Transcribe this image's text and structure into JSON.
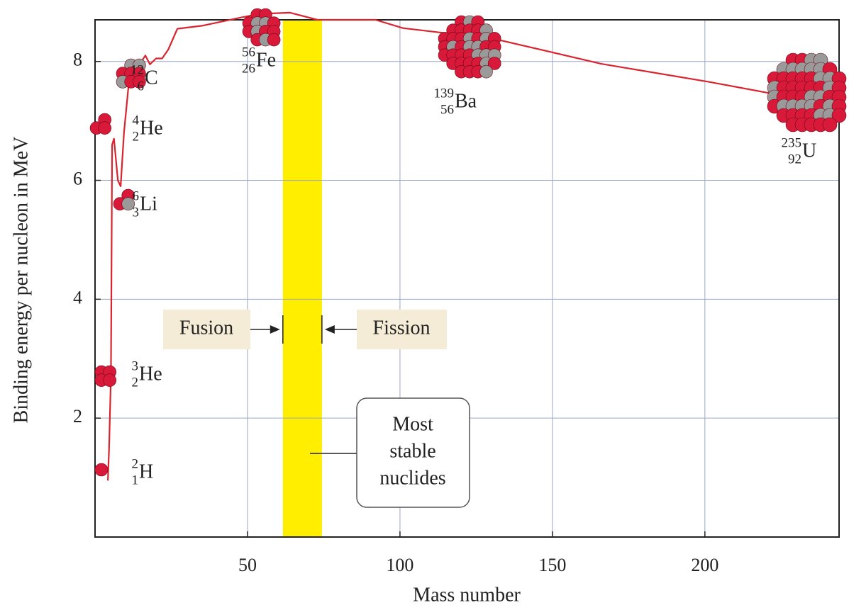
{
  "chart_data": {
    "type": "line",
    "xlabel": "Mass number",
    "ylabel": "Binding energy per nucleon in MeV",
    "xlim": [
      0,
      244
    ],
    "ylim": [
      0,
      8.7
    ],
    "xticks": [
      50,
      100,
      150,
      200
    ],
    "yticks": [
      2,
      4,
      6,
      8
    ],
    "grid": true,
    "series": [
      {
        "color": "#d9232e",
        "x": [
          4.2,
          4.6,
          5.2,
          5.6,
          6.2,
          7.5,
          8.4,
          9.5,
          11,
          12.5,
          14,
          16.5,
          18,
          20,
          22,
          24,
          27,
          35,
          48,
          54,
          64,
          73,
          92,
          101,
          131,
          166,
          201,
          244
        ],
        "values": [
          0.95,
          1.5,
          2.7,
          6.6,
          6.7,
          6.0,
          5.9,
          6.8,
          7.6,
          7.9,
          7.9,
          8.1,
          7.95,
          8.05,
          8.05,
          8.2,
          8.55,
          8.6,
          8.74,
          8.8,
          8.82,
          8.7,
          8.7,
          8.56,
          8.38,
          7.96,
          7.66,
          7.25
        ]
      }
    ],
    "highlight_band": {
      "range": [
        61.6,
        74.4
      ],
      "color": "#ffee00",
      "label": [
        "Most",
        "stable",
        "nuclides"
      ]
    },
    "fusion_label": "Fusion",
    "fission_label": "Fission",
    "nuclides": [
      {
        "mass": "2",
        "atomic": "1",
        "symbol": "H"
      },
      {
        "mass": "3",
        "atomic": "2",
        "symbol": "He"
      },
      {
        "mass": "6",
        "atomic": "3",
        "symbol": "Li"
      },
      {
        "mass": "4",
        "atomic": "2",
        "symbol": "He"
      },
      {
        "mass": "12",
        "atomic": "6",
        "symbol": "C"
      },
      {
        "mass": "56",
        "atomic": "26",
        "symbol": "Fe"
      },
      {
        "mass": "139",
        "atomic": "56",
        "symbol": "Ba"
      },
      {
        "mass": "235",
        "atomic": "92",
        "symbol": "U"
      }
    ]
  }
}
